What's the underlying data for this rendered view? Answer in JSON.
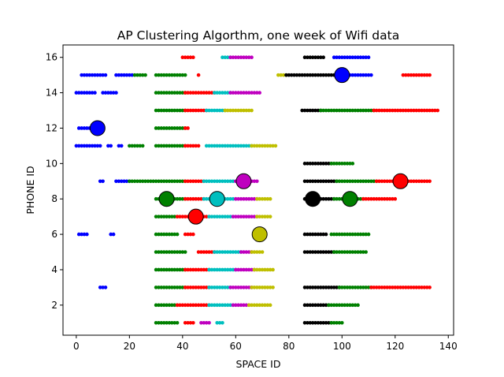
{
  "chart_data": {
    "type": "scatter",
    "title": "AP Clustering Algorthm, one week of Wifi data",
    "xlabel": "SPACE ID",
    "ylabel": "PHONE ID",
    "xlim": [
      -5,
      142
    ],
    "ylim": [
      0.3,
      16.7
    ],
    "xticks": [
      0,
      20,
      40,
      60,
      80,
      100,
      120,
      140
    ],
    "yticks": [
      2,
      4,
      6,
      8,
      10,
      12,
      14,
      16
    ],
    "colors": {
      "b": "#0000ff",
      "g": "#008000",
      "r": "#ff0000",
      "c": "#00bfbf",
      "m": "#bf00bf",
      "y": "#bfbf00",
      "k": "#000000"
    },
    "points": [
      {
        "y": 16,
        "segments": [
          [
            "r",
            40,
            44
          ],
          [
            "c",
            55,
            58
          ],
          [
            "m",
            58,
            66
          ],
          [
            "k",
            86,
            93
          ],
          [
            "b",
            97,
            110
          ]
        ]
      },
      {
        "y": 15,
        "segments": [
          [
            "b",
            2,
            11
          ],
          [
            "b",
            15,
            21
          ],
          [
            "g",
            22,
            26
          ],
          [
            "g",
            30,
            41
          ],
          [
            "r",
            46,
            46
          ],
          [
            "y",
            76,
            79
          ],
          [
            "k",
            79,
            98
          ],
          [
            "b",
            98,
            111
          ],
          [
            "r",
            123,
            133
          ]
        ]
      },
      {
        "y": 14,
        "segments": [
          [
            "b",
            0,
            7
          ],
          [
            "b",
            10,
            15
          ],
          [
            "g",
            30,
            41
          ],
          [
            "r",
            41,
            52
          ],
          [
            "c",
            52,
            58
          ],
          [
            "m",
            58,
            69
          ]
        ]
      },
      {
        "y": 13,
        "segments": [
          [
            "g",
            30,
            41
          ],
          [
            "r",
            41,
            49
          ],
          [
            "c",
            49,
            56
          ],
          [
            "y",
            56,
            66
          ],
          [
            "k",
            85,
            92
          ],
          [
            "g",
            92,
            112
          ],
          [
            "r",
            112,
            136
          ]
        ]
      },
      {
        "y": 12,
        "segments": [
          [
            "b",
            1,
            9
          ],
          [
            "g",
            30,
            41
          ],
          [
            "r",
            41,
            42
          ]
        ]
      },
      {
        "y": 11,
        "segments": [
          [
            "b",
            0,
            9
          ],
          [
            "b",
            12,
            13
          ],
          [
            "b",
            16,
            17
          ],
          [
            "g",
            20,
            25
          ],
          [
            "g",
            30,
            41
          ],
          [
            "r",
            41,
            46
          ],
          [
            "c",
            49,
            66
          ],
          [
            "y",
            66,
            75
          ]
        ]
      },
      {
        "y": 10,
        "segments": [
          [
            "k",
            86,
            96
          ],
          [
            "g",
            96,
            104
          ]
        ]
      },
      {
        "y": 9,
        "segments": [
          [
            "b",
            9,
            10
          ],
          [
            "b",
            15,
            20
          ],
          [
            "g",
            20,
            41
          ],
          [
            "r",
            41,
            48
          ],
          [
            "c",
            48,
            60
          ],
          [
            "m",
            60,
            68
          ],
          [
            "k",
            86,
            98
          ],
          [
            "g",
            98,
            113
          ],
          [
            "r",
            113,
            133
          ]
        ]
      },
      {
        "y": 8,
        "segments": [
          [
            "g",
            30,
            41
          ],
          [
            "r",
            41,
            48
          ],
          [
            "c",
            48,
            60
          ],
          [
            "m",
            60,
            68
          ],
          [
            "y",
            68,
            73
          ],
          [
            "k",
            86,
            97
          ],
          [
            "g",
            97,
            108
          ],
          [
            "r",
            108,
            120
          ]
        ]
      },
      {
        "y": 7,
        "segments": [
          [
            "g",
            30,
            38
          ],
          [
            "r",
            38,
            50
          ],
          [
            "c",
            50,
            59
          ],
          [
            "m",
            59,
            68
          ],
          [
            "y",
            68,
            73
          ]
        ]
      },
      {
        "y": 6,
        "segments": [
          [
            "b",
            1,
            4
          ],
          [
            "b",
            13,
            14
          ],
          [
            "g",
            30,
            38
          ],
          [
            "r",
            41,
            44
          ],
          [
            "k",
            86,
            94
          ],
          [
            "g",
            96,
            110
          ]
        ]
      },
      {
        "y": 5,
        "segments": [
          [
            "g",
            30,
            41
          ],
          [
            "r",
            46,
            52
          ],
          [
            "c",
            52,
            62
          ],
          [
            "m",
            62,
            66
          ],
          [
            "y",
            66,
            70
          ],
          [
            "k",
            86,
            97
          ],
          [
            "g",
            97,
            109
          ]
        ]
      },
      {
        "y": 4,
        "segments": [
          [
            "g",
            30,
            41
          ],
          [
            "r",
            41,
            50
          ],
          [
            "c",
            50,
            60
          ],
          [
            "m",
            60,
            67
          ],
          [
            "y",
            67,
            74
          ]
        ]
      },
      {
        "y": 3,
        "segments": [
          [
            "b",
            9,
            11
          ],
          [
            "g",
            30,
            41
          ],
          [
            "r",
            41,
            50
          ],
          [
            "c",
            50,
            58
          ],
          [
            "m",
            58,
            66
          ],
          [
            "y",
            66,
            74
          ],
          [
            "k",
            86,
            99
          ],
          [
            "g",
            99,
            111
          ],
          [
            "r",
            111,
            133
          ]
        ]
      },
      {
        "y": 2,
        "segments": [
          [
            "g",
            30,
            38
          ],
          [
            "r",
            38,
            50
          ],
          [
            "c",
            50,
            59
          ],
          [
            "m",
            59,
            65
          ],
          [
            "y",
            65,
            73
          ],
          [
            "k",
            86,
            95
          ],
          [
            "g",
            95,
            106
          ]
        ]
      },
      {
        "y": 1,
        "segments": [
          [
            "g",
            30,
            38
          ],
          [
            "r",
            41,
            44
          ],
          [
            "m",
            47,
            50
          ],
          [
            "c",
            53,
            55
          ],
          [
            "k",
            86,
            96
          ],
          [
            "g",
            96,
            100
          ]
        ]
      }
    ],
    "centroids": [
      {
        "x": 100,
        "y": 15,
        "color": "b"
      },
      {
        "x": 8,
        "y": 12,
        "color": "b"
      },
      {
        "x": 63,
        "y": 9,
        "color": "m"
      },
      {
        "x": 122,
        "y": 9,
        "color": "r"
      },
      {
        "x": 34,
        "y": 8,
        "color": "g"
      },
      {
        "x": 53,
        "y": 8,
        "color": "c"
      },
      {
        "x": 89,
        "y": 8,
        "color": "k"
      },
      {
        "x": 103,
        "y": 8,
        "color": "g"
      },
      {
        "x": 45,
        "y": 7,
        "color": "r"
      },
      {
        "x": 69,
        "y": 6,
        "color": "y"
      }
    ]
  }
}
